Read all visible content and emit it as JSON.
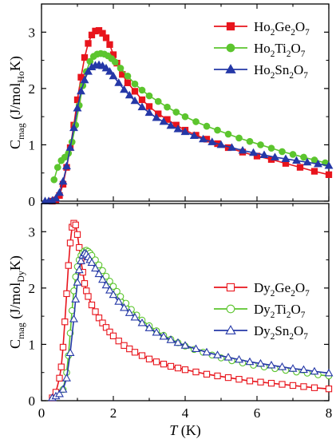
{
  "chart_data": [
    {
      "type": "line",
      "ylabel": {
        "base": "C",
        "base_sub": "mag",
        "unit_pre": " (J/mol",
        "unit_sub": "Ho",
        "unit_post": "K)"
      },
      "xlim": [
        0,
        8
      ],
      "ylim": [
        0,
        3.5
      ],
      "yticks": [
        "0",
        "1",
        "2",
        "3"
      ],
      "grid": false,
      "legend_position": "top-right",
      "marker_fill": "filled",
      "series": [
        {
          "name_parts": [
            "Ho",
            "2",
            "Ge",
            "2",
            "O",
            "7"
          ],
          "color": "#e8141c",
          "marker": "square",
          "x": [
            0.3,
            0.4,
            0.5,
            0.6,
            0.7,
            0.8,
            0.9,
            1.0,
            1.1,
            1.2,
            1.3,
            1.4,
            1.5,
            1.6,
            1.7,
            1.8,
            1.9,
            2.0,
            2.1,
            2.25,
            2.4,
            2.6,
            2.8,
            3.0,
            3.25,
            3.5,
            3.75,
            4.0,
            4.3,
            4.6,
            4.9,
            5.2,
            5.6,
            6.0,
            6.4,
            6.8,
            7.2,
            7.6,
            8.0
          ],
          "y": [
            0.0,
            0.02,
            0.1,
            0.3,
            0.6,
            0.95,
            1.35,
            1.8,
            2.2,
            2.55,
            2.8,
            2.95,
            3.02,
            3.03,
            2.98,
            2.9,
            2.78,
            2.6,
            2.45,
            2.25,
            2.1,
            1.95,
            1.8,
            1.68,
            1.55,
            1.45,
            1.35,
            1.26,
            1.17,
            1.1,
            1.02,
            0.95,
            0.87,
            0.8,
            0.74,
            0.67,
            0.6,
            0.53,
            0.47
          ]
        },
        {
          "name_parts": [
            "Ho",
            "2",
            "Ti",
            "2",
            "O",
            "7"
          ],
          "color": "#5cc52e",
          "marker": "circle",
          "x": [
            0.35,
            0.45,
            0.55,
            0.65,
            0.75,
            0.85,
            0.95,
            1.05,
            1.15,
            1.25,
            1.35,
            1.45,
            1.55,
            1.65,
            1.75,
            1.85,
            1.95,
            2.05,
            2.2,
            2.4,
            2.6,
            2.8,
            3.0,
            3.25,
            3.5,
            3.75,
            4.0,
            4.3,
            4.6,
            4.9,
            5.2,
            5.5,
            5.8,
            6.1,
            6.4,
            6.7,
            7.0,
            7.3,
            7.6,
            7.9
          ],
          "y": [
            0.38,
            0.6,
            0.72,
            0.78,
            0.85,
            1.05,
            1.35,
            1.7,
            2.05,
            2.3,
            2.48,
            2.57,
            2.61,
            2.62,
            2.61,
            2.58,
            2.53,
            2.47,
            2.36,
            2.22,
            2.08,
            1.97,
            1.87,
            1.77,
            1.67,
            1.58,
            1.5,
            1.41,
            1.33,
            1.26,
            1.19,
            1.12,
            1.06,
            1.0,
            0.94,
            0.88,
            0.83,
            0.78,
            0.73,
            0.68
          ]
        },
        {
          "name_parts": [
            "Ho",
            "2",
            "Sn",
            "2",
            "O",
            "7"
          ],
          "color": "#2538a7",
          "marker": "triangle",
          "x": [
            0.1,
            0.2,
            0.3,
            0.4,
            0.5,
            0.6,
            0.7,
            0.8,
            0.9,
            1.0,
            1.1,
            1.2,
            1.3,
            1.4,
            1.5,
            1.6,
            1.7,
            1.8,
            1.9,
            2.0,
            2.15,
            2.3,
            2.45,
            2.6,
            2.8,
            3.0,
            3.2,
            3.4,
            3.6,
            3.8,
            4.0,
            4.25,
            4.5,
            4.75,
            5.0,
            5.3,
            5.6,
            5.9,
            6.2,
            6.5,
            6.8,
            7.1,
            7.4,
            7.7,
            8.0
          ],
          "y": [
            0.0,
            0.0,
            0.01,
            0.05,
            0.15,
            0.35,
            0.62,
            0.95,
            1.3,
            1.65,
            1.95,
            2.15,
            2.3,
            2.38,
            2.41,
            2.42,
            2.4,
            2.36,
            2.3,
            2.22,
            2.1,
            1.98,
            1.88,
            1.78,
            1.67,
            1.57,
            1.48,
            1.41,
            1.34,
            1.28,
            1.23,
            1.16,
            1.1,
            1.05,
            1.0,
            0.95,
            0.9,
            0.86,
            0.82,
            0.78,
            0.75,
            0.72,
            0.69,
            0.66,
            0.63
          ]
        }
      ]
    },
    {
      "type": "line",
      "xlabel": {
        "italic": "T",
        "rest": " (K)"
      },
      "ylabel": {
        "base": "C",
        "base_sub": "mag",
        "unit_pre": " (J/mol",
        "unit_sub": "Dy",
        "unit_post": "K)"
      },
      "xlim": [
        0,
        8
      ],
      "ylim": [
        0,
        3.5
      ],
      "xticks": [
        "0",
        "2",
        "4",
        "6",
        "8"
      ],
      "yticks": [
        "0",
        "1",
        "2",
        "3"
      ],
      "grid": false,
      "legend_position": "bottom-right",
      "marker_fill": "open",
      "series": [
        {
          "name_parts": [
            "Dy",
            "2",
            "Ge",
            "2",
            "O",
            "7"
          ],
          "color": "#e8141c",
          "marker": "square",
          "x": [
            0.3,
            0.4,
            0.5,
            0.55,
            0.6,
            0.65,
            0.7,
            0.75,
            0.8,
            0.85,
            0.9,
            0.95,
            1.0,
            1.05,
            1.1,
            1.15,
            1.2,
            1.25,
            1.3,
            1.4,
            1.5,
            1.6,
            1.7,
            1.8,
            1.9,
            2.0,
            2.15,
            2.3,
            2.45,
            2.6,
            2.8,
            3.0,
            3.2,
            3.4,
            3.6,
            3.8,
            4.0,
            4.3,
            4.6,
            4.9,
            5.2,
            5.5,
            5.8,
            6.1,
            6.4,
            6.7,
            7.0,
            7.3,
            7.6,
            8.0
          ],
          "y": [
            0.05,
            0.15,
            0.4,
            0.6,
            0.95,
            1.4,
            1.9,
            2.4,
            2.8,
            3.08,
            3.15,
            3.12,
            2.95,
            2.72,
            2.48,
            2.28,
            2.08,
            1.95,
            1.85,
            1.7,
            1.58,
            1.47,
            1.38,
            1.3,
            1.22,
            1.15,
            1.06,
            0.98,
            0.92,
            0.86,
            0.8,
            0.74,
            0.69,
            0.65,
            0.61,
            0.58,
            0.55,
            0.51,
            0.47,
            0.44,
            0.41,
            0.38,
            0.35,
            0.33,
            0.31,
            0.29,
            0.27,
            0.25,
            0.23,
            0.21
          ]
        },
        {
          "name_parts": [
            "Dy",
            "2",
            "Ti",
            "2",
            "O",
            "7"
          ],
          "color": "#5cc52e",
          "marker": "circle",
          "x": [
            0.6,
            0.7,
            0.75,
            0.8,
            0.85,
            0.9,
            0.95,
            1.0,
            1.05,
            1.1,
            1.15,
            1.2,
            1.25,
            1.3,
            1.35,
            1.4,
            1.5,
            1.6,
            1.7,
            1.8,
            1.9,
            2.0,
            2.1,
            2.2,
            2.35,
            2.5,
            2.65,
            2.8,
            3.0,
            3.2,
            3.4,
            3.6,
            3.8,
            4.0,
            4.25,
            4.5,
            4.75,
            5.0,
            5.3,
            5.6,
            5.9,
            6.2,
            6.5,
            6.8,
            7.1,
            7.4,
            7.7,
            8.0
          ],
          "y": [
            0.2,
            0.5,
            0.8,
            1.2,
            1.6,
            1.95,
            2.2,
            2.38,
            2.5,
            2.58,
            2.63,
            2.66,
            2.67,
            2.65,
            2.62,
            2.58,
            2.5,
            2.41,
            2.31,
            2.21,
            2.12,
            2.03,
            1.94,
            1.85,
            1.73,
            1.62,
            1.52,
            1.43,
            1.33,
            1.24,
            1.16,
            1.09,
            1.03,
            0.97,
            0.91,
            0.86,
            0.81,
            0.76,
            0.71,
            0.67,
            0.63,
            0.6,
            0.57,
            0.54,
            0.51,
            0.49,
            0.46,
            0.44
          ]
        },
        {
          "name_parts": [
            "Dy",
            "2",
            "Sn",
            "2",
            "O",
            "7"
          ],
          "color": "#2538a7",
          "marker": "triangle",
          "x": [
            0.3,
            0.4,
            0.5,
            0.6,
            0.7,
            0.8,
            0.9,
            0.95,
            1.0,
            1.05,
            1.1,
            1.15,
            1.2,
            1.25,
            1.3,
            1.35,
            1.4,
            1.5,
            1.6,
            1.7,
            1.8,
            1.9,
            2.0,
            2.15,
            2.3,
            2.45,
            2.6,
            2.8,
            3.0,
            3.2,
            3.4,
            3.6,
            3.8,
            4.0,
            4.3,
            4.6,
            4.9,
            5.2,
            5.5,
            5.8,
            6.1,
            6.4,
            6.7,
            7.0,
            7.3,
            7.6,
            8.0
          ],
          "y": [
            0.05,
            0.08,
            0.12,
            0.2,
            0.4,
            0.85,
            1.45,
            1.8,
            2.1,
            2.32,
            2.48,
            2.58,
            2.62,
            2.6,
            2.55,
            2.5,
            2.45,
            2.35,
            2.25,
            2.15,
            2.05,
            1.96,
            1.88,
            1.76,
            1.65,
            1.56,
            1.48,
            1.38,
            1.29,
            1.21,
            1.14,
            1.08,
            1.03,
            0.98,
            0.92,
            0.86,
            0.81,
            0.77,
            0.73,
            0.69,
            0.66,
            0.63,
            0.6,
            0.57,
            0.55,
            0.52,
            0.49
          ]
        }
      ]
    }
  ]
}
